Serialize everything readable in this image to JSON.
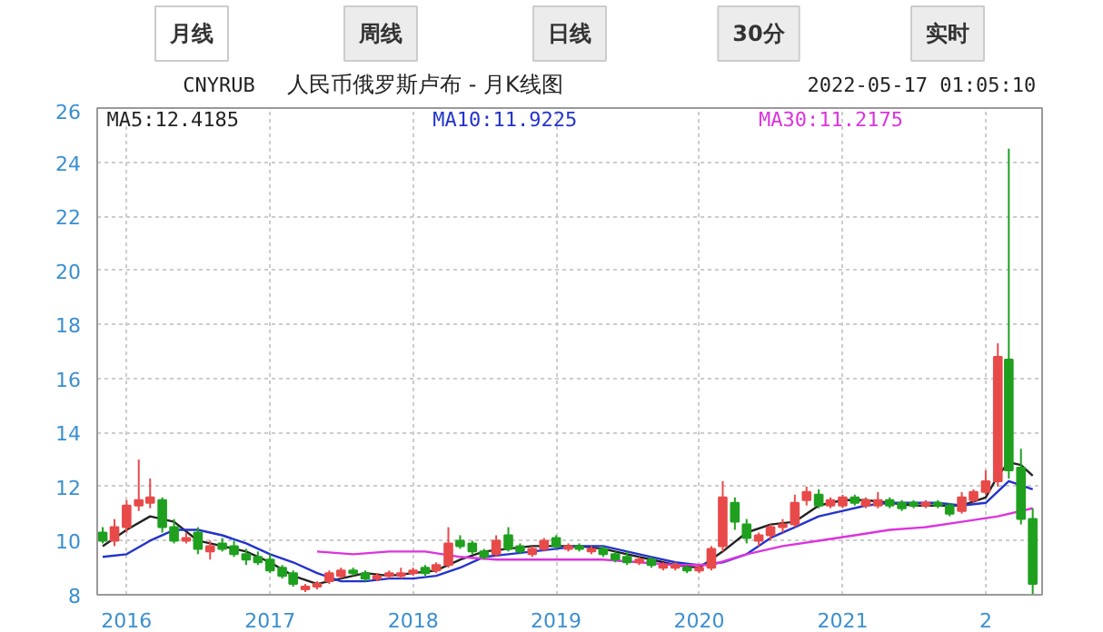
{
  "chart_data": {
    "type": "candlestick",
    "title": "人民币俄罗斯卢布 - 月K线图",
    "subtitle": "CNYRUB",
    "annotations": [
      "月线",
      "周线",
      "日线",
      "30分",
      "实时",
      "2022-05-17 01:05:10"
    ],
    "x": [
      "2015-11",
      "2015-12",
      "2016-01",
      "2016-02",
      "2016-03",
      "2016-04",
      "2016-05",
      "2016-06",
      "2016-07",
      "2016-08",
      "2016-09",
      "2016-10",
      "2016-11",
      "2016-12",
      "2017-01",
      "2017-02",
      "2017-03",
      "2017-04",
      "2017-05",
      "2017-06",
      "2017-07",
      "2017-08",
      "2017-09",
      "2017-10",
      "2017-11",
      "2017-12",
      "2018-01",
      "2018-02",
      "2018-03",
      "2018-04",
      "2018-05",
      "2018-06",
      "2018-07",
      "2018-08",
      "2018-09",
      "2018-10",
      "2018-11",
      "2018-12",
      "2019-01",
      "2019-02",
      "2019-03",
      "2019-04",
      "2019-05",
      "2019-06",
      "2019-07",
      "2019-08",
      "2019-09",
      "2019-10",
      "2019-11",
      "2019-12",
      "2020-01",
      "2020-02",
      "2020-03",
      "2020-04",
      "2020-05",
      "2020-06",
      "2020-07",
      "2020-08",
      "2020-09",
      "2020-10",
      "2020-11",
      "2020-12",
      "2021-01",
      "2021-02",
      "2021-03",
      "2021-04",
      "2021-05",
      "2021-06",
      "2021-07",
      "2021-08",
      "2021-09",
      "2021-10",
      "2021-11",
      "2021-12",
      "2022-01",
      "2022-02",
      "2022-03",
      "2022-04",
      "2022-05"
    ],
    "ohlc": [
      [
        10.3,
        10.5,
        9.9,
        10.0
      ],
      [
        10.0,
        10.8,
        9.8,
        10.5
      ],
      [
        10.5,
        11.5,
        10.3,
        11.3
      ],
      [
        11.3,
        13.0,
        11.1,
        11.5
      ],
      [
        11.4,
        12.3,
        11.2,
        11.6
      ],
      [
        11.5,
        11.6,
        10.3,
        10.5
      ],
      [
        10.5,
        10.8,
        9.9,
        10.0
      ],
      [
        10.0,
        10.3,
        9.9,
        10.1
      ],
      [
        10.3,
        10.5,
        9.5,
        9.7
      ],
      [
        9.6,
        10.0,
        9.3,
        9.8
      ],
      [
        9.9,
        10.1,
        9.6,
        9.7
      ],
      [
        9.8,
        10.0,
        9.4,
        9.5
      ],
      [
        9.5,
        9.7,
        9.1,
        9.3
      ],
      [
        9.4,
        9.6,
        9.1,
        9.2
      ],
      [
        9.3,
        9.5,
        8.8,
        8.9
      ],
      [
        9.0,
        9.1,
        8.6,
        8.7
      ],
      [
        8.8,
        8.9,
        8.3,
        8.4
      ],
      [
        8.2,
        8.4,
        8.1,
        8.3
      ],
      [
        8.3,
        8.5,
        8.2,
        8.4
      ],
      [
        8.5,
        8.9,
        8.4,
        8.8
      ],
      [
        8.7,
        9.0,
        8.6,
        8.9
      ],
      [
        8.9,
        9.0,
        8.7,
        8.8
      ],
      [
        8.8,
        8.9,
        8.5,
        8.6
      ],
      [
        8.6,
        8.8,
        8.5,
        8.7
      ],
      [
        8.7,
        8.9,
        8.6,
        8.8
      ],
      [
        8.7,
        9.0,
        8.6,
        8.8
      ],
      [
        8.8,
        9.0,
        8.7,
        8.9
      ],
      [
        9.0,
        9.1,
        8.7,
        8.8
      ],
      [
        8.9,
        9.2,
        8.8,
        9.1
      ],
      [
        9.1,
        10.5,
        9.0,
        9.9
      ],
      [
        10.0,
        10.2,
        9.7,
        9.8
      ],
      [
        9.9,
        10.0,
        9.5,
        9.6
      ],
      [
        9.6,
        9.7,
        9.3,
        9.4
      ],
      [
        9.5,
        10.2,
        9.4,
        10.0
      ],
      [
        10.2,
        10.5,
        9.6,
        9.7
      ],
      [
        9.8,
        9.9,
        9.5,
        9.6
      ],
      [
        9.5,
        9.8,
        9.4,
        9.7
      ],
      [
        9.7,
        10.1,
        9.6,
        10.0
      ],
      [
        10.1,
        10.2,
        9.7,
        9.8
      ],
      [
        9.7,
        9.9,
        9.6,
        9.8
      ],
      [
        9.8,
        9.9,
        9.6,
        9.7
      ],
      [
        9.6,
        9.8,
        9.5,
        9.7
      ],
      [
        9.7,
        9.8,
        9.4,
        9.5
      ],
      [
        9.5,
        9.6,
        9.2,
        9.3
      ],
      [
        9.4,
        9.6,
        9.1,
        9.2
      ],
      [
        9.2,
        9.4,
        9.1,
        9.3
      ],
      [
        9.3,
        9.4,
        9.0,
        9.1
      ],
      [
        9.0,
        9.2,
        8.9,
        9.1
      ],
      [
        9.0,
        9.2,
        8.9,
        9.1
      ],
      [
        9.0,
        9.1,
        8.8,
        8.9
      ],
      [
        8.9,
        9.1,
        8.8,
        9.0
      ],
      [
        9.0,
        9.8,
        8.9,
        9.7
      ],
      [
        9.8,
        12.2,
        9.6,
        11.6
      ],
      [
        11.4,
        11.6,
        10.4,
        10.7
      ],
      [
        10.6,
        10.8,
        9.9,
        10.1
      ],
      [
        10.0,
        10.3,
        9.8,
        10.2
      ],
      [
        10.2,
        10.6,
        10.0,
        10.5
      ],
      [
        10.5,
        10.8,
        10.3,
        10.6
      ],
      [
        10.6,
        11.7,
        10.5,
        11.4
      ],
      [
        11.5,
        12.0,
        11.3,
        11.8
      ],
      [
        11.7,
        11.9,
        11.2,
        11.3
      ],
      [
        11.3,
        11.6,
        11.2,
        11.5
      ],
      [
        11.3,
        11.7,
        11.2,
        11.6
      ],
      [
        11.6,
        11.7,
        11.3,
        11.4
      ],
      [
        11.3,
        11.6,
        11.2,
        11.5
      ],
      [
        11.3,
        11.8,
        11.2,
        11.5
      ],
      [
        11.5,
        11.6,
        11.2,
        11.3
      ],
      [
        11.4,
        11.5,
        11.1,
        11.2
      ],
      [
        11.4,
        11.5,
        11.2,
        11.3
      ],
      [
        11.3,
        11.5,
        11.2,
        11.4
      ],
      [
        11.4,
        11.5,
        11.2,
        11.3
      ],
      [
        11.3,
        11.4,
        10.9,
        11.0
      ],
      [
        11.1,
        11.8,
        11.0,
        11.6
      ],
      [
        11.5,
        11.9,
        11.4,
        11.8
      ],
      [
        11.8,
        12.6,
        11.7,
        12.2
      ],
      [
        12.2,
        17.3,
        12.0,
        16.8
      ],
      [
        16.7,
        24.5,
        12.3,
        12.6
      ],
      [
        12.7,
        13.4,
        10.6,
        10.8
      ],
      [
        10.8,
        11.2,
        8.0,
        8.4
      ]
    ],
    "colors": [
      "#1fa01f",
      "#e84a4a",
      "#e84a4a",
      "#e84a4a",
      "#e84a4a",
      "#1fa01f",
      "#1fa01f",
      "#e84a4a",
      "#1fa01f",
      "#e84a4a",
      "#1fa01f",
      "#1fa01f",
      "#1fa01f",
      "#1fa01f",
      "#1fa01f",
      "#1fa01f",
      "#1fa01f",
      "#e84a4a",
      "#e84a4a",
      "#e84a4a",
      "#e84a4a",
      "#1fa01f",
      "#1fa01f",
      "#e84a4a",
      "#e84a4a",
      "#e84a4a",
      "#e84a4a",
      "#1fa01f",
      "#e84a4a",
      "#e84a4a",
      "#1fa01f",
      "#1fa01f",
      "#1fa01f",
      "#e84a4a",
      "#1fa01f",
      "#1fa01f",
      "#e84a4a",
      "#e84a4a",
      "#1fa01f",
      "#e84a4a",
      "#1fa01f",
      "#e84a4a",
      "#1fa01f",
      "#1fa01f",
      "#1fa01f",
      "#e84a4a",
      "#1fa01f",
      "#e84a4a",
      "#e84a4a",
      "#1fa01f",
      "#e84a4a",
      "#e84a4a",
      "#e84a4a",
      "#1fa01f",
      "#1fa01f",
      "#e84a4a",
      "#e84a4a",
      "#e84a4a",
      "#e84a4a",
      "#e84a4a",
      "#1fa01f",
      "#e84a4a",
      "#e84a4a",
      "#1fa01f",
      "#e84a4a",
      "#e84a4a",
      "#1fa01f",
      "#1fa01f",
      "#1fa01f",
      "#e84a4a",
      "#1fa01f",
      "#1fa01f",
      "#e84a4a",
      "#e84a4a",
      "#e84a4a",
      "#e84a4a",
      "#1fa01f",
      "#1fa01f",
      "#1fa01f"
    ],
    "series": [
      {
        "type": "line",
        "name": "MA5:12.4185",
        "color": "#222222",
        "x": [
          "2015-11",
          "2016-01",
          "2016-03",
          "2016-05",
          "2016-07",
          "2016-09",
          "2016-11",
          "2017-01",
          "2017-03",
          "2017-05",
          "2017-07",
          "2017-09",
          "2017-11",
          "2018-01",
          "2018-03",
          "2018-05",
          "2018-07",
          "2018-09",
          "2018-11",
          "2019-01",
          "2019-03",
          "2019-05",
          "2019-07",
          "2019-09",
          "2019-11",
          "2020-01",
          "2020-03",
          "2020-05",
          "2020-07",
          "2020-09",
          "2020-11",
          "2021-01",
          "2021-03",
          "2021-05",
          "2021-07",
          "2021-09",
          "2021-11",
          "2022-01",
          "2022-02",
          "2022-03",
          "2022-04",
          "2022-05"
        ],
        "values": [
          9.8,
          10.4,
          10.9,
          10.7,
          10.0,
          9.8,
          9.6,
          9.2,
          8.7,
          8.4,
          8.6,
          8.8,
          8.7,
          8.8,
          8.9,
          9.3,
          9.6,
          9.7,
          9.8,
          9.8,
          9.8,
          9.7,
          9.5,
          9.3,
          9.1,
          9.0,
          9.6,
          10.3,
          10.6,
          10.7,
          11.3,
          11.5,
          11.5,
          11.4,
          11.3,
          11.3,
          11.3,
          11.6,
          12.4,
          12.9,
          12.8,
          12.4
        ]
      },
      {
        "type": "line",
        "name": "MA10:11.9225",
        "color": "#2233cc",
        "x": [
          "2015-11",
          "2016-01",
          "2016-03",
          "2016-05",
          "2016-07",
          "2016-09",
          "2016-11",
          "2017-01",
          "2017-03",
          "2017-05",
          "2017-07",
          "2017-09",
          "2017-11",
          "2018-01",
          "2018-03",
          "2018-05",
          "2018-07",
          "2018-09",
          "2018-11",
          "2019-01",
          "2019-03",
          "2019-05",
          "2019-07",
          "2019-09",
          "2019-11",
          "2020-01",
          "2020-03",
          "2020-05",
          "2020-07",
          "2020-09",
          "2020-11",
          "2021-01",
          "2021-03",
          "2021-05",
          "2021-07",
          "2021-09",
          "2021-11",
          "2022-01",
          "2022-03",
          "2022-05"
        ],
        "values": [
          9.4,
          9.5,
          10.0,
          10.4,
          10.4,
          10.2,
          9.9,
          9.5,
          9.2,
          8.8,
          8.5,
          8.5,
          8.6,
          8.6,
          8.7,
          9.0,
          9.4,
          9.5,
          9.6,
          9.7,
          9.8,
          9.8,
          9.6,
          9.4,
          9.2,
          9.1,
          9.2,
          9.5,
          10.1,
          10.5,
          10.9,
          11.1,
          11.3,
          11.4,
          11.4,
          11.4,
          11.3,
          11.4,
          12.2,
          11.9
        ]
      },
      {
        "type": "line",
        "name": "MA30:11.2175",
        "color": "#dd33dd",
        "x": [
          "2017-05",
          "2017-08",
          "2017-11",
          "2018-02",
          "2018-05",
          "2018-08",
          "2018-11",
          "2019-02",
          "2019-05",
          "2019-08",
          "2019-11",
          "2020-02",
          "2020-05",
          "2020-08",
          "2020-11",
          "2021-02",
          "2021-05",
          "2021-08",
          "2021-11",
          "2022-02",
          "2022-05"
        ],
        "values": [
          9.6,
          9.5,
          9.6,
          9.6,
          9.4,
          9.3,
          9.3,
          9.3,
          9.3,
          9.2,
          9.1,
          9.1,
          9.5,
          9.8,
          10.0,
          10.2,
          10.4,
          10.5,
          10.7,
          10.9,
          11.2
        ]
      }
    ],
    "legend": "top",
    "xlim": [
      "2015-10-18",
      "2022-05-25"
    ],
    "xticks": [
      {
        "value": "2016-01-01",
        "label": "2016"
      },
      {
        "value": "2017-01-01",
        "label": "2017"
      },
      {
        "value": "2018-01-01",
        "label": "2018"
      },
      {
        "value": "2019-01-01",
        "label": "2019"
      },
      {
        "value": "2020-01-01",
        "label": "2020"
      },
      {
        "value": "2021-01-01",
        "label": "2021"
      },
      {
        "value": "2022-01-01",
        "label": "2"
      }
    ],
    "ylim": [
      8,
      26
    ],
    "yticks": [
      8,
      10,
      12,
      14,
      16,
      18,
      20,
      22,
      24,
      26
    ],
    "grid": true
  }
}
